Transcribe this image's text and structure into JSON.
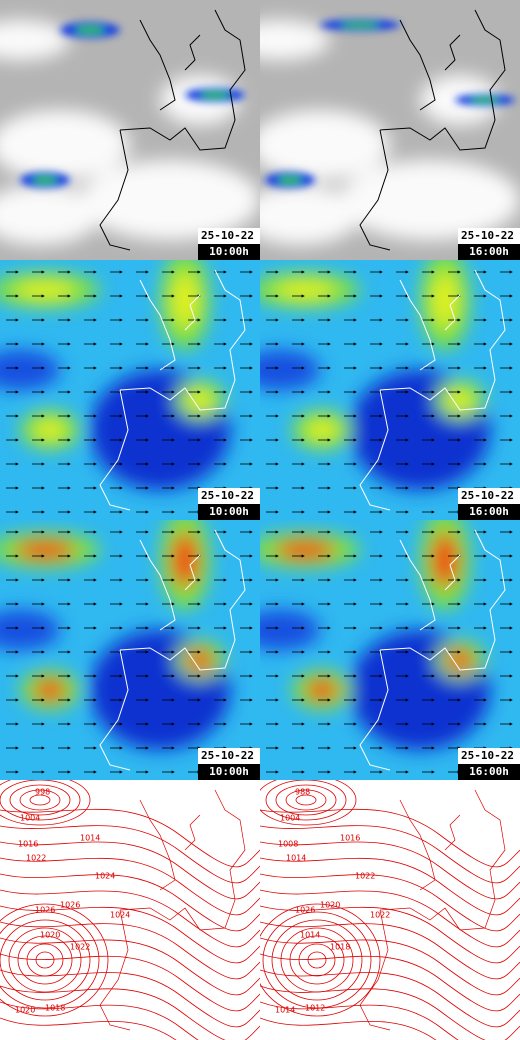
{
  "maps": [
    {
      "date": "25-10-22",
      "time": "10:00h"
    },
    {
      "date": "25-10-22",
      "time": "16:00h"
    },
    {
      "date": "25-10-22",
      "time": "10:00h"
    },
    {
      "date": "25-10-22",
      "time": "16:00h"
    },
    {
      "date": "25-10-22",
      "time": "10:00h"
    },
    {
      "date": "25-10-22",
      "time": "16:00h"
    }
  ],
  "isobars": {
    "left": [
      "998",
      "1004",
      "1016",
      "1014",
      "1022",
      "1024",
      "1026",
      "1024",
      "1026",
      "1022",
      "1020",
      "1018",
      "1020"
    ],
    "right": [
      "988",
      "1004",
      "1008",
      "1016",
      "1014",
      "1022",
      "1026",
      "1022",
      "1020",
      "1018",
      "1014",
      "1012",
      "1014"
    ]
  }
}
